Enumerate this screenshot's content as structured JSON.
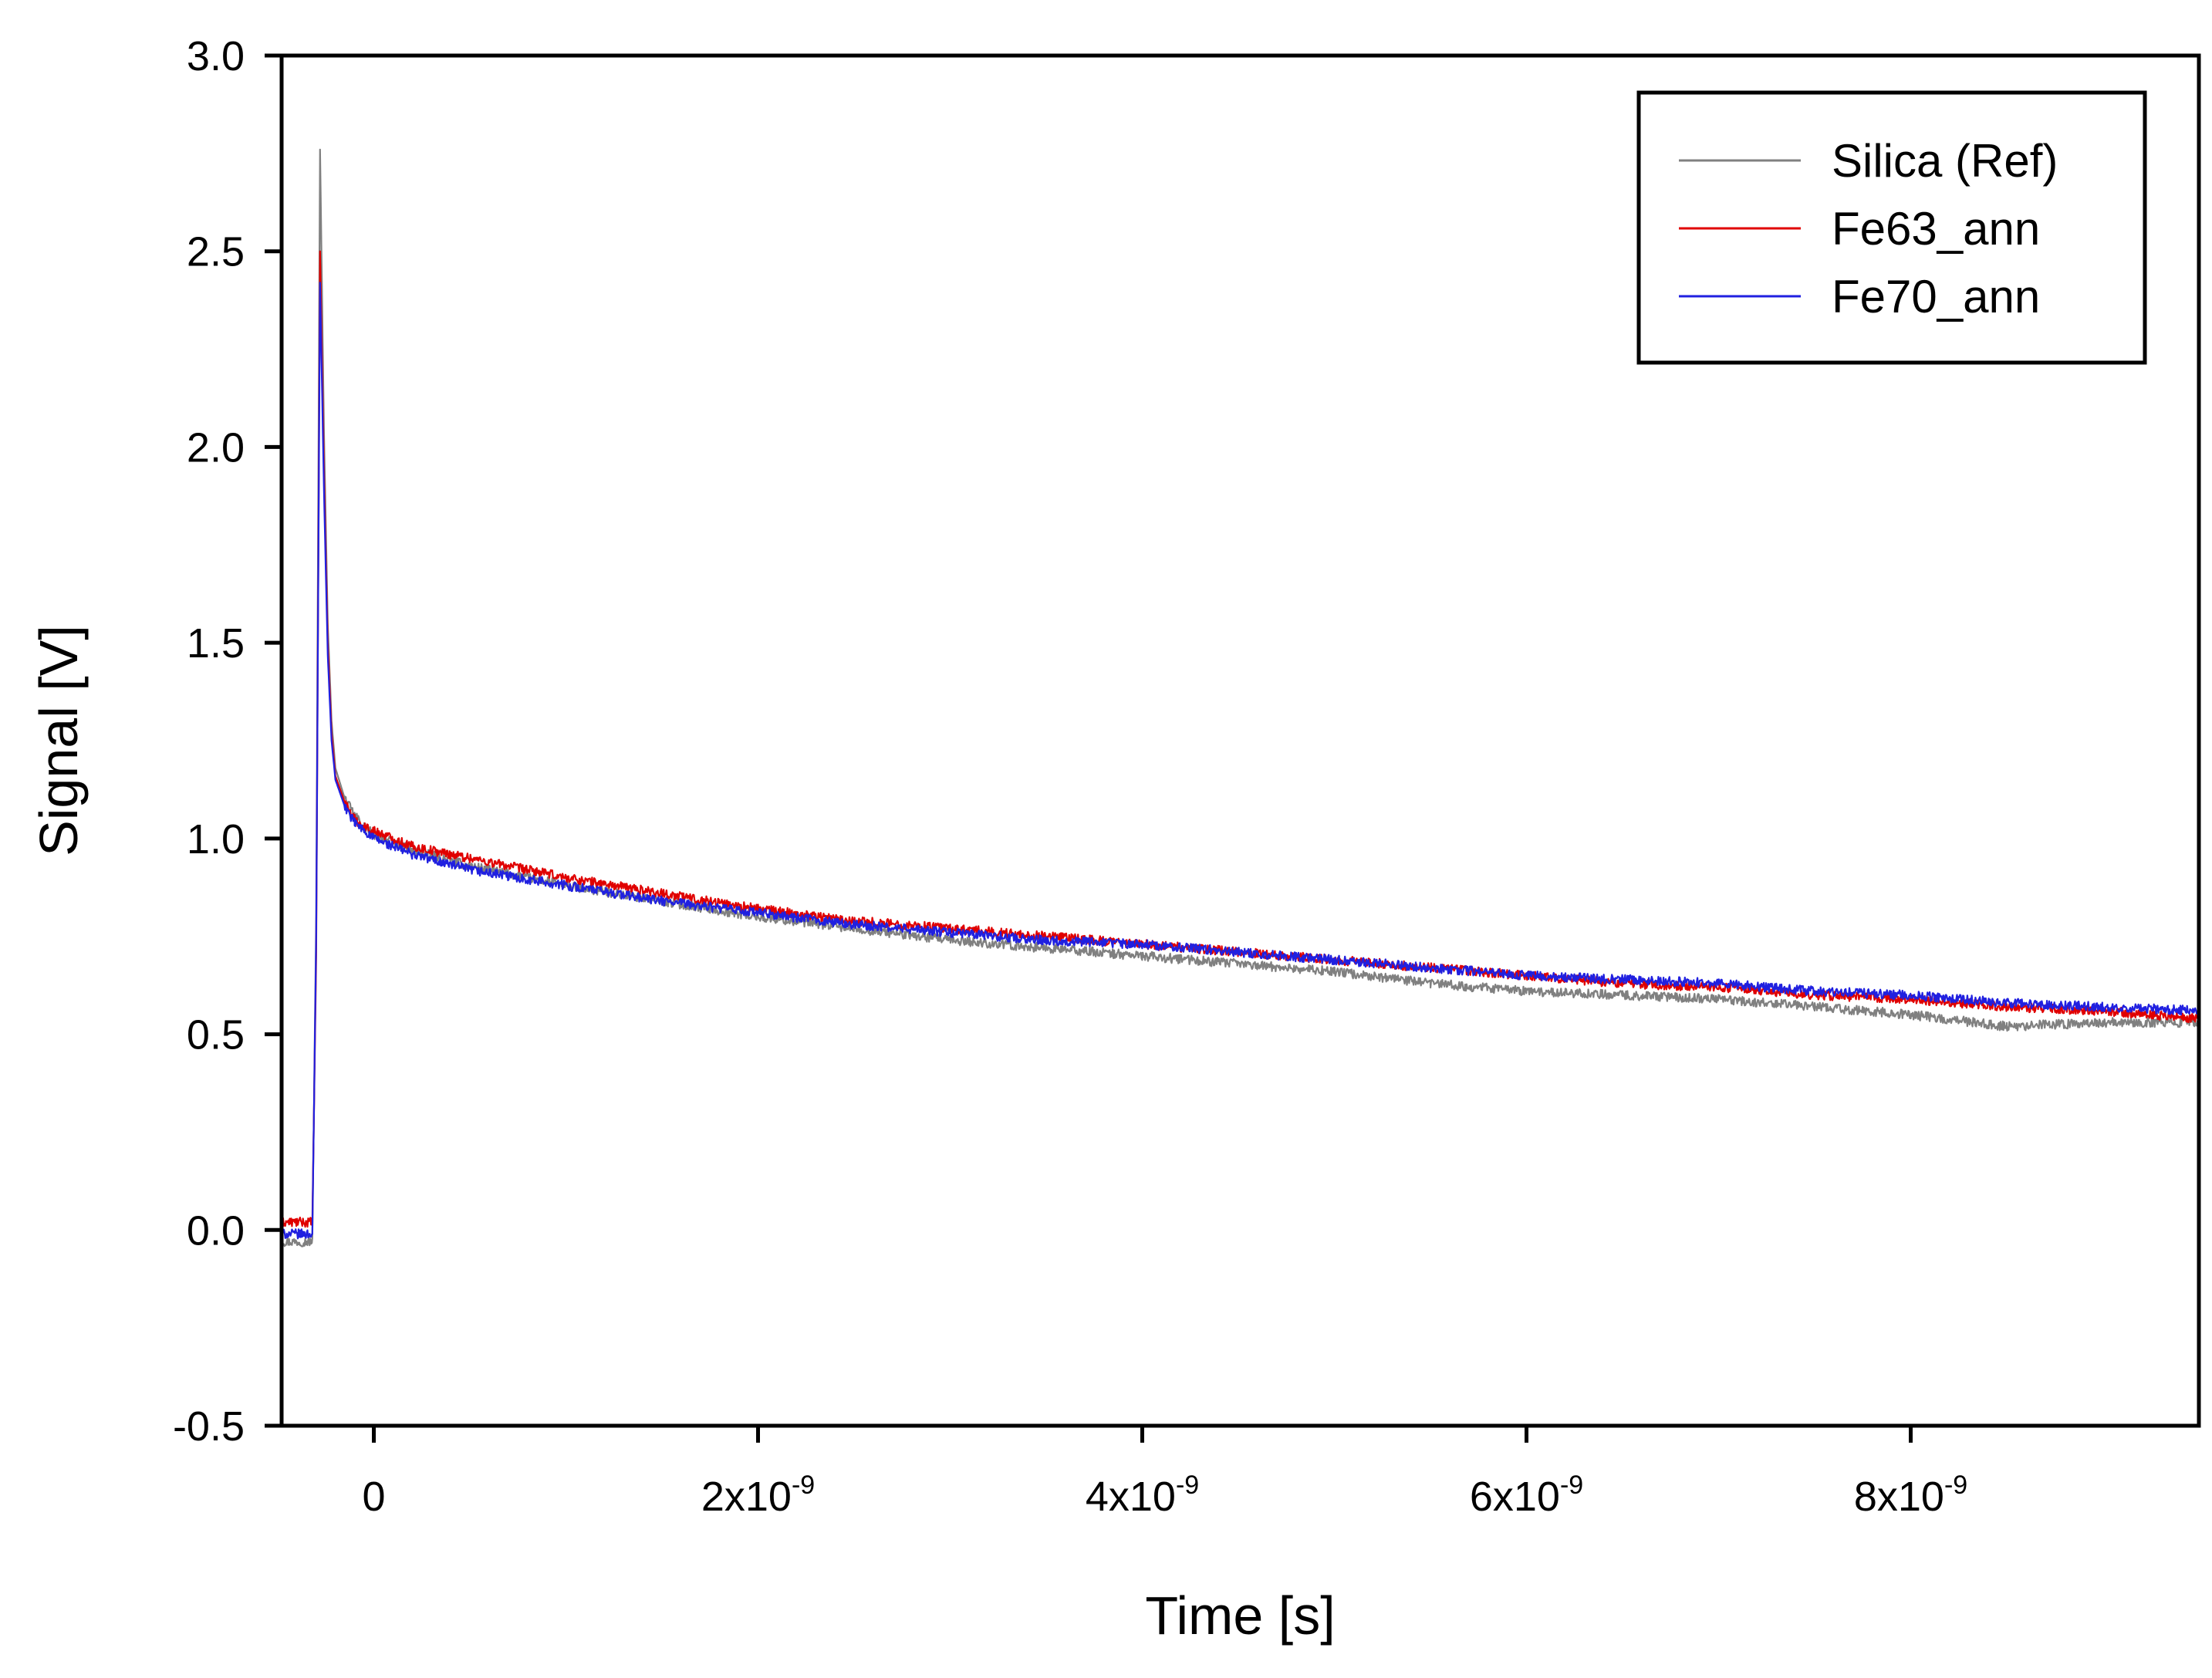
{
  "chart_data": {
    "type": "line",
    "title": "",
    "xlabel": "Time [s]",
    "ylabel": "Signal [V]",
    "xlim": [
      -4.8e-10,
      9.5e-09
    ],
    "ylim": [
      -0.5,
      3.0
    ],
    "grid": false,
    "legend_position": "top-right",
    "x_ticks": [
      {
        "value": 0,
        "mantissa": "0",
        "exponent": ""
      },
      {
        "value": 2e-09,
        "mantissa": "2x10",
        "exponent": "-9"
      },
      {
        "value": 4e-09,
        "mantissa": "4x10",
        "exponent": "-9"
      },
      {
        "value": 6e-09,
        "mantissa": "6x10",
        "exponent": "-9"
      },
      {
        "value": 8e-09,
        "mantissa": "8x10",
        "exponent": "-9"
      }
    ],
    "y_ticks": [
      {
        "value": -0.5,
        "label": "-0.5"
      },
      {
        "value": 0.0,
        "label": "0.0"
      },
      {
        "value": 0.5,
        "label": "0.5"
      },
      {
        "value": 1.0,
        "label": "1.0"
      },
      {
        "value": 1.5,
        "label": "1.5"
      },
      {
        "value": 2.0,
        "label": "2.0"
      },
      {
        "value": 2.5,
        "label": "2.5"
      },
      {
        "value": 3.0,
        "label": "3.0"
      }
    ],
    "series": [
      {
        "name": "Silica (Ref)",
        "color": "#808080",
        "x": [
          -4.8e-10,
          -3.2e-10,
          -3e-10,
          -2.8e-10,
          -2.6e-10,
          -2.4e-10,
          -2.2e-10,
          -2e-10,
          -1.5e-10,
          -1e-10,
          -5e-11,
          0,
          2e-10,
          5e-10,
          1e-09,
          1.5e-09,
          2e-09,
          2.5e-09,
          3e-09,
          3.5e-09,
          4e-09,
          4.5e-09,
          5e-09,
          5.5e-09,
          6e-09,
          6.5e-09,
          7e-09,
          7.5e-09,
          8e-09,
          8.5e-09,
          9e-09,
          9.5e-09
        ],
        "y": [
          -0.03,
          -0.03,
          0.8,
          2.76,
          2.05,
          1.55,
          1.3,
          1.18,
          1.1,
          1.06,
          1.03,
          1.01,
          0.97,
          0.93,
          0.88,
          0.84,
          0.8,
          0.77,
          0.74,
          0.72,
          0.7,
          0.68,
          0.66,
          0.63,
          0.61,
          0.6,
          0.59,
          0.57,
          0.55,
          0.52,
          0.53,
          0.53
        ]
      },
      {
        "name": "Fe63_ann",
        "color": "#e00000",
        "x": [
          -4.8e-10,
          -3.2e-10,
          -3e-10,
          -2.8e-10,
          -2.6e-10,
          -2.4e-10,
          -2.2e-10,
          -2e-10,
          -1.5e-10,
          -1e-10,
          -5e-11,
          0,
          2e-10,
          5e-10,
          1e-09,
          1.5e-09,
          2e-09,
          2.5e-09,
          3e-09,
          3.5e-09,
          4e-09,
          4.5e-09,
          5e-09,
          5.5e-09,
          6e-09,
          6.5e-09,
          7e-09,
          7.5e-09,
          8e-09,
          8.5e-09,
          9e-09,
          9.5e-09
        ],
        "y": [
          0.02,
          0.02,
          0.7,
          2.5,
          1.95,
          1.5,
          1.27,
          1.16,
          1.09,
          1.05,
          1.03,
          1.02,
          0.98,
          0.95,
          0.9,
          0.86,
          0.82,
          0.79,
          0.77,
          0.75,
          0.73,
          0.71,
          0.69,
          0.67,
          0.65,
          0.63,
          0.62,
          0.6,
          0.59,
          0.57,
          0.56,
          0.54
        ]
      },
      {
        "name": "Fe70_ann",
        "color": "#2020e0",
        "x": [
          -4.8e-10,
          -3.2e-10,
          -3e-10,
          -2.8e-10,
          -2.6e-10,
          -2.4e-10,
          -2.2e-10,
          -2e-10,
          -1.5e-10,
          -1e-10,
          -5e-11,
          0,
          2e-10,
          5e-10,
          1e-09,
          1.5e-09,
          2e-09,
          2.5e-09,
          3e-09,
          3.5e-09,
          4e-09,
          4.5e-09,
          5e-09,
          5.5e-09,
          6e-09,
          6.5e-09,
          7e-09,
          7.5e-09,
          8e-09,
          8.5e-09,
          9e-09,
          9.5e-09
        ],
        "y": [
          -0.01,
          -0.01,
          0.75,
          2.42,
          1.9,
          1.47,
          1.25,
          1.15,
          1.08,
          1.04,
          1.02,
          1.0,
          0.96,
          0.92,
          0.88,
          0.84,
          0.81,
          0.78,
          0.76,
          0.74,
          0.73,
          0.71,
          0.69,
          0.67,
          0.65,
          0.64,
          0.63,
          0.61,
          0.6,
          0.58,
          0.57,
          0.56
        ]
      }
    ]
  }
}
